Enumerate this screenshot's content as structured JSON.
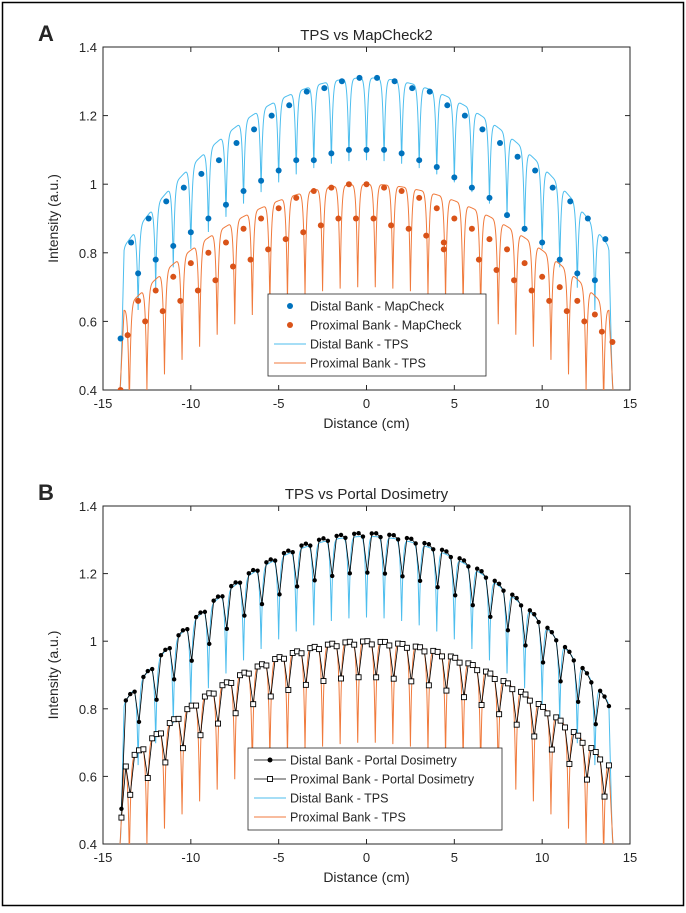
{
  "figure": {
    "border_color": "#000000"
  },
  "chart_data": [
    {
      "type": "line",
      "panel_label": "A",
      "title": "TPS vs MapCheck2",
      "xlabel": "Distance (cm)",
      "ylabel": "Intensity (a.u.)",
      "xlim": [
        -15,
        15
      ],
      "ylim": [
        0.4,
        1.4
      ],
      "xticks": [
        "-15",
        "-10",
        "-5",
        "0",
        "5",
        "10",
        "15"
      ],
      "yticks": [
        "0.4",
        "0.6",
        "0.8",
        "1",
        "1.2",
        "1.4"
      ],
      "grid": false,
      "legend_position": "bottom-center",
      "series": [
        {
          "name": "Distal Bank - MapCheck",
          "kind": "markers",
          "marker": "dot",
          "color": "#0072BD",
          "x": [
            -14,
            -13.4,
            -13,
            -12.4,
            -12,
            -11.4,
            -11,
            -10.4,
            -10,
            -9.4,
            -9,
            -8.4,
            -8,
            -7.4,
            -7,
            -6.4,
            -6,
            -5.4,
            -5,
            -4.4,
            -4,
            -3.4,
            -3,
            -2.4,
            -2,
            -1.4,
            -1,
            -0.4,
            0,
            0.6,
            1,
            1.6,
            2,
            2.6,
            3,
            3.6,
            4,
            4.6,
            5,
            5.6,
            6,
            6.6,
            7,
            7.6,
            8,
            8.6,
            9,
            9.6,
            10,
            10.6,
            11,
            11.6,
            12,
            12.6,
            13,
            13.6
          ],
          "y": [
            0.55,
            0.83,
            0.74,
            0.9,
            0.78,
            0.95,
            0.82,
            0.99,
            0.86,
            1.03,
            0.9,
            1.07,
            0.94,
            1.12,
            0.98,
            1.16,
            1.01,
            1.2,
            1.04,
            1.23,
            1.07,
            1.27,
            1.07,
            1.28,
            1.09,
            1.3,
            1.1,
            1.31,
            1.1,
            1.31,
            1.1,
            1.3,
            1.09,
            1.28,
            1.07,
            1.27,
            1.05,
            1.23,
            1.02,
            1.2,
            0.99,
            1.16,
            0.96,
            1.12,
            0.91,
            1.08,
            0.87,
            1.04,
            0.83,
            0.99,
            0.78,
            0.95,
            0.74,
            0.9,
            0.72,
            0.84
          ]
        },
        {
          "name": "Proximal Bank - MapCheck",
          "kind": "markers",
          "marker": "dot",
          "color": "#D95319",
          "x": [
            -14,
            -13.6,
            -13,
            -12.6,
            -12,
            -11.6,
            -11,
            -10.6,
            -10,
            -9.6,
            -9,
            -8.6,
            -8,
            -7.6,
            -7,
            -6.6,
            -6,
            -5.6,
            -5,
            -4.6,
            -4,
            -3.6,
            -3,
            -2.6,
            -2,
            -1.6,
            -1,
            -0.6,
            0,
            0.4,
            1,
            1.4,
            2,
            2.4,
            3,
            3.4,
            4,
            4.4,
            5,
            4.4,
            6,
            6.4,
            7,
            7.4,
            8,
            8.4,
            9,
            9.4,
            10,
            10.4,
            11,
            11.4,
            12,
            12.4,
            13,
            13.4,
            14
          ],
          "y": [
            0.4,
            0.56,
            0.66,
            0.6,
            0.69,
            0.63,
            0.73,
            0.66,
            0.77,
            0.69,
            0.8,
            0.72,
            0.83,
            0.76,
            0.87,
            0.78,
            0.9,
            0.81,
            0.93,
            0.84,
            0.96,
            0.86,
            0.98,
            0.88,
            0.99,
            0.9,
            1.0,
            0.9,
            1.0,
            0.9,
            0.99,
            0.88,
            0.98,
            0.87,
            0.96,
            0.85,
            0.93,
            0.83,
            0.9,
            0.81,
            0.87,
            0.78,
            0.84,
            0.75,
            0.81,
            0.72,
            0.77,
            0.69,
            0.73,
            0.66,
            0.7,
            0.63,
            0.66,
            0.6,
            0.62,
            0.57,
            0.54
          ]
        },
        {
          "name": "Distal Bank - TPS",
          "kind": "line",
          "color": "#4DBEEE",
          "model": "peaked_profile",
          "peak": 1.31,
          "shoulder": 0.8,
          "dip_depth": 0.24,
          "period": 1.0,
          "phase": -14.5,
          "field_edge": 14.05
        },
        {
          "name": "Proximal Bank - TPS",
          "kind": "line",
          "color": "#F07A3C",
          "model": "peaked_profile",
          "peak": 1.0,
          "shoulder": 0.62,
          "dip_depth": 0.3,
          "period": 1.0,
          "phase": -14.0,
          "field_edge": 14.05
        }
      ]
    },
    {
      "type": "line",
      "panel_label": "B",
      "title": "TPS vs Portal Dosimetry",
      "xlabel": "Distance (cm)",
      "ylabel": "Intensity (a.u.)",
      "xlim": [
        -15,
        15
      ],
      "ylim": [
        0.4,
        1.4
      ],
      "xticks": [
        "-15",
        "-10",
        "-5",
        "0",
        "5",
        "10",
        "15"
      ],
      "yticks": [
        "0.4",
        "0.6",
        "0.8",
        "1",
        "1.2",
        "1.4"
      ],
      "grid": false,
      "legend_position": "bottom-center",
      "series": [
        {
          "name": "Distal Bank - Portal Dosimetry",
          "kind": "line-markers",
          "marker": "dot",
          "color": "#000000",
          "model": "sampled_profile",
          "peak": 1.32,
          "shoulder": 0.8,
          "dip_depth": 0.22,
          "period": 1.0,
          "phase": -14.5,
          "field_edge": 14.05,
          "sample_step": 0.25
        },
        {
          "name": "Proximal Bank - Portal Dosimetry",
          "kind": "line-markers",
          "marker": "square",
          "color": "#000000",
          "model": "sampled_profile",
          "peak": 1.0,
          "shoulder": 0.62,
          "dip_depth": 0.2,
          "period": 1.0,
          "phase": -14.0,
          "field_edge": 14.05,
          "sample_step": 0.25
        },
        {
          "name": "Distal Bank - TPS",
          "kind": "line",
          "color": "#4DBEEE",
          "model": "peaked_profile",
          "peak": 1.31,
          "shoulder": 0.8,
          "dip_depth": 0.24,
          "period": 1.0,
          "phase": -14.5,
          "field_edge": 14.05
        },
        {
          "name": "Proximal Bank - TPS",
          "kind": "line",
          "color": "#F07A3C",
          "model": "peaked_profile",
          "peak": 1.0,
          "shoulder": 0.62,
          "dip_depth": 0.3,
          "period": 1.0,
          "phase": -14.0,
          "field_edge": 14.05
        }
      ]
    }
  ]
}
